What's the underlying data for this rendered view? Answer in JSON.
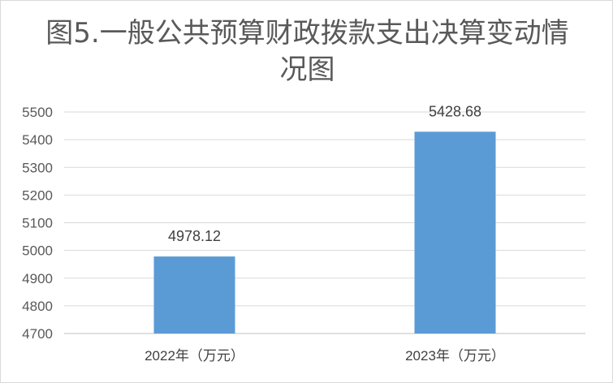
{
  "chart_data": {
    "type": "bar",
    "title": "图5.一般公共预算财政拨款支出决算变动情况图",
    "categories": [
      "2022年（万元）",
      "2023年（万元）"
    ],
    "values": [
      4978.12,
      5428.68
    ],
    "data_labels": [
      "4978.12",
      "5428.68"
    ],
    "xlabel": "",
    "ylabel": "",
    "ylim": [
      4700,
      5500
    ],
    "yticks": [
      4700,
      4800,
      4900,
      5000,
      5100,
      5200,
      5300,
      5400,
      5500
    ],
    "grid": true,
    "legend": "none",
    "bar_color": "#5b9bd5",
    "grid_color": "#d9d9d9",
    "axis_color": "#bfbfbf"
  }
}
